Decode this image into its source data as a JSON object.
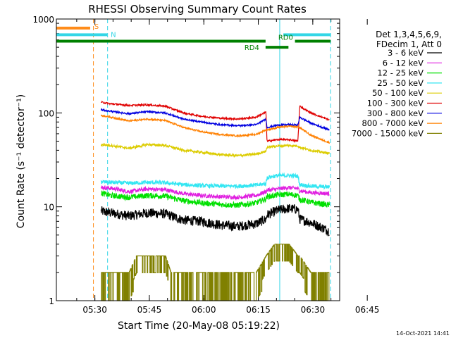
{
  "chart_data": {
    "type": "line",
    "title": "RHESSI Observing Summary Count Rates",
    "xlabel": "Start Time (20-May-08 05:19:22)",
    "ylabel": "Count Rate (s⁻¹ detector⁻¹)",
    "y_scale": "log",
    "ylim": [
      1,
      1000
    ],
    "xlim_minutes": [
      0,
      78
    ],
    "x_ticks": [
      {
        "label": "05:30",
        "minute": 10.6
      },
      {
        "label": "05:45",
        "minute": 25.6
      },
      {
        "label": "06:00",
        "minute": 40.6
      },
      {
        "label": "06:15",
        "minute": 55.6
      },
      {
        "label": "06:30",
        "minute": 70.6
      },
      {
        "label": "06:45",
        "minute": 85.6
      }
    ],
    "y_ticks": [
      "1",
      "10",
      "100",
      "1000"
    ],
    "legend_header": [
      "Det 1,3,4,5,6,9,",
      "FDecim 1, Att 0"
    ],
    "legend_position": "right",
    "timestamp": "14-Oct-2021 14:41",
    "vertical_markers": [
      {
        "minute": 10.2,
        "color": "#ff8c1a",
        "style": "dashed"
      },
      {
        "minute": 14.1,
        "color": "#33d6e6",
        "style": "dashed"
      },
      {
        "minute": 61.5,
        "color": "#33d6e6",
        "style": "solid"
      },
      {
        "minute": 75.5,
        "color": "#33d6e6",
        "style": "dashed"
      }
    ],
    "flag_bars": [
      {
        "label": "S",
        "color": "#ff8c1a",
        "y_value": 800,
        "segments": [
          [
            0,
            9.3
          ]
        ]
      },
      {
        "label": "N",
        "color": "#33d6e6",
        "y_value": 680,
        "segments": [
          [
            0,
            14.0
          ],
          [
            62.5,
            75.5
          ]
        ]
      },
      {
        "label": "RD0",
        "color": "#008000",
        "y_value": 580,
        "segments": [
          [
            0,
            57.6
          ],
          [
            65.7,
            75.5
          ]
        ]
      },
      {
        "label": "RD4",
        "color": "#008000",
        "y_value": 500,
        "segments": [
          [
            57.6,
            63.9
          ]
        ]
      }
    ],
    "series": [
      {
        "name": "3 - 6 keV",
        "color": "#000000",
        "values": [
          [
            12.3,
            9.0
          ],
          [
            15,
            8.6
          ],
          [
            20,
            8.0
          ],
          [
            25,
            8.6
          ],
          [
            30,
            8.4
          ],
          [
            35,
            7.2
          ],
          [
            40,
            7.0
          ],
          [
            45,
            6.4
          ],
          [
            50,
            6.2
          ],
          [
            55,
            6.6
          ],
          [
            57.7,
            7.4
          ],
          [
            58,
            8.2
          ],
          [
            61,
            9.2
          ],
          [
            64,
            9.6
          ],
          [
            66.5,
            9.4
          ],
          [
            67,
            7.4
          ],
          [
            70,
            6.8
          ],
          [
            75.2,
            5.5
          ]
        ]
      },
      {
        "name": "6 - 12 keV",
        "color": "#e020e0",
        "values": [
          [
            12.3,
            16.0
          ],
          [
            15,
            15.8
          ],
          [
            20,
            14.5
          ],
          [
            25,
            15.5
          ],
          [
            30,
            15.2
          ],
          [
            35,
            13.8
          ],
          [
            40,
            13.2
          ],
          [
            45,
            12.8
          ],
          [
            50,
            12.6
          ],
          [
            55,
            13.2
          ],
          [
            57.7,
            14.5
          ],
          [
            58,
            15.0
          ],
          [
            61,
            15.5
          ],
          [
            64,
            16.0
          ],
          [
            66.5,
            15.6
          ],
          [
            67,
            14.8
          ],
          [
            70,
            14.2
          ],
          [
            75.2,
            13.8
          ]
        ]
      },
      {
        "name": "12 - 25 keV",
        "color": "#00e000",
        "values": [
          [
            12.3,
            14.0
          ],
          [
            15,
            13.2
          ],
          [
            20,
            12.6
          ],
          [
            25,
            13.2
          ],
          [
            30,
            13.0
          ],
          [
            35,
            11.6
          ],
          [
            40,
            11.0
          ],
          [
            45,
            10.6
          ],
          [
            50,
            10.4
          ],
          [
            55,
            11.0
          ],
          [
            57.7,
            12.2
          ],
          [
            58,
            12.8
          ],
          [
            61,
            13.4
          ],
          [
            64,
            13.6
          ],
          [
            66.5,
            13.2
          ],
          [
            67,
            12.0
          ],
          [
            70,
            11.2
          ],
          [
            75.2,
            10.4
          ]
        ]
      },
      {
        "name": "25 - 50 keV",
        "color": "#33e6f2",
        "values": [
          [
            12.3,
            18.5
          ],
          [
            15,
            18.2
          ],
          [
            20,
            17.8
          ],
          [
            25,
            18.2
          ],
          [
            30,
            18.0
          ],
          [
            35,
            17.2
          ],
          [
            40,
            16.8
          ],
          [
            45,
            16.6
          ],
          [
            50,
            16.6
          ],
          [
            55,
            17.0
          ],
          [
            57.7,
            17.6
          ],
          [
            58,
            20.5
          ],
          [
            61,
            21.5
          ],
          [
            64,
            21.5
          ],
          [
            66.5,
            21.2
          ],
          [
            67,
            17.2
          ],
          [
            70,
            16.6
          ],
          [
            75.2,
            16.2
          ]
        ]
      },
      {
        "name": "50 - 100 keV",
        "color": "#dccc00",
        "values": [
          [
            12.3,
            46
          ],
          [
            15,
            45
          ],
          [
            20,
            42
          ],
          [
            25,
            46
          ],
          [
            30,
            45
          ],
          [
            35,
            40
          ],
          [
            40,
            38
          ],
          [
            45,
            36
          ],
          [
            50,
            35
          ],
          [
            55,
            36.5
          ],
          [
            57.7,
            39
          ],
          [
            58,
            43
          ],
          [
            61,
            44.5
          ],
          [
            64,
            45
          ],
          [
            66.5,
            44.5
          ],
          [
            67,
            43
          ],
          [
            70,
            40
          ],
          [
            75.2,
            37
          ]
        ]
      },
      {
        "name": "100 - 300 keV",
        "color": "#e00000",
        "values": [
          [
            12.3,
            130
          ],
          [
            15,
            125
          ],
          [
            20,
            120
          ],
          [
            25,
            122
          ],
          [
            30,
            118
          ],
          [
            35,
            100
          ],
          [
            40,
            92
          ],
          [
            45,
            88
          ],
          [
            50,
            86
          ],
          [
            55,
            90
          ],
          [
            57.7,
            102
          ],
          [
            58,
            50
          ],
          [
            61,
            52
          ],
          [
            64,
            52
          ],
          [
            66.5,
            50
          ],
          [
            67,
            118
          ],
          [
            70,
            100
          ],
          [
            75.2,
            84
          ]
        ]
      },
      {
        "name": "300 - 800 keV",
        "color": "#0000e0",
        "values": [
          [
            12.3,
            108
          ],
          [
            15,
            104
          ],
          [
            20,
            98
          ],
          [
            25,
            103
          ],
          [
            30,
            100
          ],
          [
            35,
            86
          ],
          [
            40,
            80
          ],
          [
            45,
            75
          ],
          [
            50,
            73
          ],
          [
            55,
            75
          ],
          [
            57.7,
            86
          ],
          [
            58,
            70
          ],
          [
            61,
            74
          ],
          [
            64,
            75
          ],
          [
            66.5,
            74
          ],
          [
            67,
            90
          ],
          [
            70,
            78
          ],
          [
            75.2,
            66
          ]
        ]
      },
      {
        "name": "800 - 7000 keV",
        "color": "#ff8000",
        "values": [
          [
            12.3,
            94
          ],
          [
            15,
            90
          ],
          [
            20,
            82
          ],
          [
            25,
            86
          ],
          [
            30,
            83
          ],
          [
            35,
            70
          ],
          [
            40,
            63
          ],
          [
            45,
            59
          ],
          [
            50,
            57
          ],
          [
            55,
            59
          ],
          [
            57.7,
            66
          ],
          [
            58,
            66
          ],
          [
            61,
            70
          ],
          [
            64,
            72
          ],
          [
            66.5,
            71
          ],
          [
            67,
            70
          ],
          [
            70,
            58
          ],
          [
            75.2,
            48
          ]
        ]
      },
      {
        "name": "7000 - 15000 keV",
        "color": "#808000",
        "values": [
          [
            12.3,
            2.0
          ],
          [
            20,
            2.0
          ],
          [
            22,
            3.0
          ],
          [
            30,
            3.0
          ],
          [
            31.5,
            2.0
          ],
          [
            55,
            2.0
          ],
          [
            57.7,
            3.0
          ],
          [
            60,
            4.0
          ],
          [
            64,
            4.0
          ],
          [
            66.5,
            3.0
          ],
          [
            67,
            3.0
          ],
          [
            70,
            2.0
          ],
          [
            75.2,
            2.0
          ]
        ]
      }
    ]
  }
}
